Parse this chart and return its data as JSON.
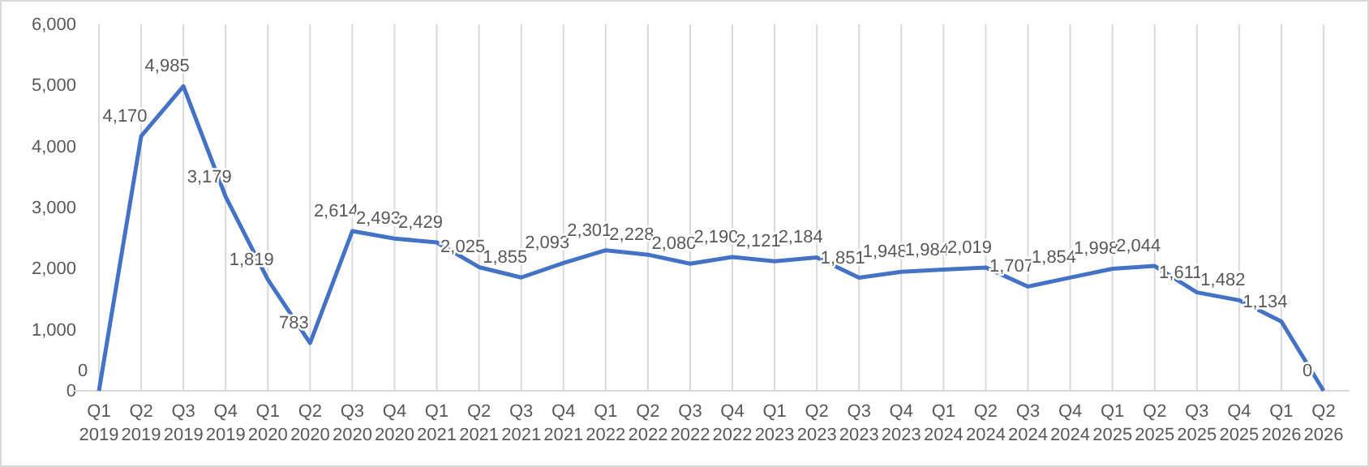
{
  "chart_data": {
    "type": "line",
    "categories": [
      "Q1 2019",
      "Q2 2019",
      "Q3 2019",
      "Q4 2019",
      "Q1 2020",
      "Q2 2020",
      "Q3 2020",
      "Q4 2020",
      "Q1 2021",
      "Q2 2021",
      "Q3 2021",
      "Q4 2021",
      "Q1 2022",
      "Q2 2022",
      "Q3 2022",
      "Q4 2022",
      "Q1 2023",
      "Q2 2023",
      "Q3 2023",
      "Q4 2023",
      "Q1 2024",
      "Q2 2024",
      "Q3 2024",
      "Q4 2024",
      "Q1 2025",
      "Q2 2025",
      "Q3 2025",
      "Q4 2025",
      "Q1 2026",
      "Q2 2026"
    ],
    "series": [
      {
        "color": "#4472c4",
        "values": [
          0,
          4170,
          4985,
          3179,
          1819,
          783,
          2614,
          2493,
          2429,
          2025,
          1855,
          2093,
          2301,
          2228,
          2080,
          2190,
          2121,
          2184,
          1851,
          1948,
          1984,
          2019,
          1707,
          1854,
          1998,
          2044,
          1611,
          1482,
          1134,
          0
        ],
        "value_labels": [
          "0",
          "4,170",
          "4,985",
          "3,179",
          "1,819",
          "783",
          "2,614",
          "2,493",
          "2,429",
          "2,025",
          "1,855",
          "2,093",
          "2,301",
          "2,228",
          "2,080",
          "2,190",
          "2,121",
          "2,184",
          "1,851",
          "1,948",
          "1,984",
          "2,019",
          "1,707",
          "1,854",
          "1,998",
          "2,044",
          "1,611",
          "1,482",
          "1,134",
          "0"
        ]
      }
    ],
    "ylim": [
      0,
      6000
    ],
    "yticks": [
      {
        "value": 0,
        "label": "0"
      },
      {
        "value": 1000,
        "label": "1,000"
      },
      {
        "value": 2000,
        "label": "2,000"
      },
      {
        "value": 3000,
        "label": "3,000"
      },
      {
        "value": 4000,
        "label": "4,000"
      },
      {
        "value": 5000,
        "label": "5,000"
      },
      {
        "value": 6000,
        "label": "6,000"
      }
    ],
    "grid": "x",
    "marker": "none",
    "line_style": "solid"
  }
}
